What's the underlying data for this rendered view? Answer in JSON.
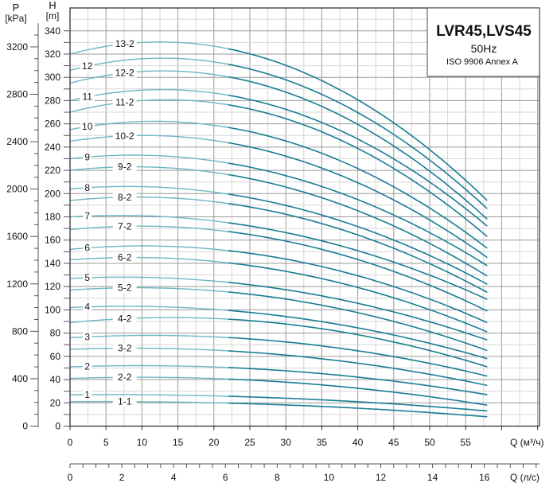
{
  "chart_data": {
    "type": "line",
    "title": "LVR45,LVS45",
    "subtitle": "50Hz",
    "note": "ISO 9906 Annex A",
    "colors": {
      "curve_light": "#6db6c6",
      "curve_dark": "#177d93",
      "grid_major": "#9a9a9a",
      "grid_minor": "#d6d6d6"
    },
    "x_axis": {
      "label": "Q (м³/ч)",
      "range": [
        0,
        65.3
      ],
      "ticks": [
        "0",
        "5",
        "10",
        "15",
        "20",
        "25",
        "30",
        "35",
        "40",
        "45",
        "50",
        "55"
      ]
    },
    "x2_axis": {
      "label": "Q (л/с)",
      "ticks": [
        "0",
        "2",
        "4",
        "6",
        "8",
        "10",
        "12",
        "14",
        "16"
      ]
    },
    "y_axis": {
      "label": "H",
      "unit": "[m]",
      "range": [
        0,
        358
      ],
      "ticks": [
        "0",
        "20",
        "40",
        "60",
        "80",
        "100",
        "120",
        "140",
        "160",
        "180",
        "200",
        "220",
        "240",
        "260",
        "280",
        "300",
        "320",
        "340"
      ]
    },
    "y2_axis": {
      "label": "P",
      "unit": "[kPa]",
      "ticks": [
        "0",
        "400",
        "800",
        "1200",
        "1600",
        "2000",
        "2400",
        "2800",
        "3200"
      ]
    },
    "grid": true,
    "series_q": [
      0,
      10,
      58
    ],
    "series": [
      {
        "name": "13-2",
        "h": [
          320,
          330,
          194
        ]
      },
      {
        "name": "12",
        "h": [
          306,
          316,
          187
        ]
      },
      {
        "name": "12-2",
        "h": [
          295,
          305,
          178
        ]
      },
      {
        "name": "11",
        "h": [
          280,
          289,
          172
        ]
      },
      {
        "name": "11-2",
        "h": [
          270,
          280,
          163
        ]
      },
      {
        "name": "10",
        "h": [
          255,
          262,
          153
        ]
      },
      {
        "name": "10-2",
        "h": [
          245,
          250,
          145
        ]
      },
      {
        "name": "9",
        "h": [
          230,
          233,
          138
        ]
      },
      {
        "name": "9-2",
        "h": [
          220,
          223,
          129
        ]
      },
      {
        "name": "8",
        "h": [
          204,
          206,
          122
        ]
      },
      {
        "name": "8-2",
        "h": [
          194,
          197,
          115
        ]
      },
      {
        "name": "7",
        "h": [
          180,
          181,
          109
        ]
      },
      {
        "name": "7-2",
        "h": [
          169,
          172,
          99
        ]
      },
      {
        "name": "6",
        "h": [
          152,
          155,
          89
        ]
      },
      {
        "name": "6-2",
        "h": [
          143,
          145,
          81
        ]
      },
      {
        "name": "5",
        "h": [
          127,
          128,
          74
        ]
      },
      {
        "name": "5-2",
        "h": [
          117,
          119,
          65
        ]
      },
      {
        "name": "4",
        "h": [
          102,
          103,
          58
        ]
      },
      {
        "name": "4-2",
        "h": [
          89,
          93,
          51
        ]
      },
      {
        "name": "3",
        "h": [
          76,
          78,
          43
        ]
      },
      {
        "name": "3-2",
        "h": [
          66,
          67,
          35
        ]
      },
      {
        "name": "2",
        "h": [
          51,
          52,
          27
        ]
      },
      {
        "name": "2-2",
        "h": [
          41,
          42,
          18
        ]
      },
      {
        "name": "1",
        "h": [
          27,
          27,
          13
        ]
      },
      {
        "name": "1-1",
        "h": [
          21,
          21,
          8
        ]
      }
    ]
  }
}
